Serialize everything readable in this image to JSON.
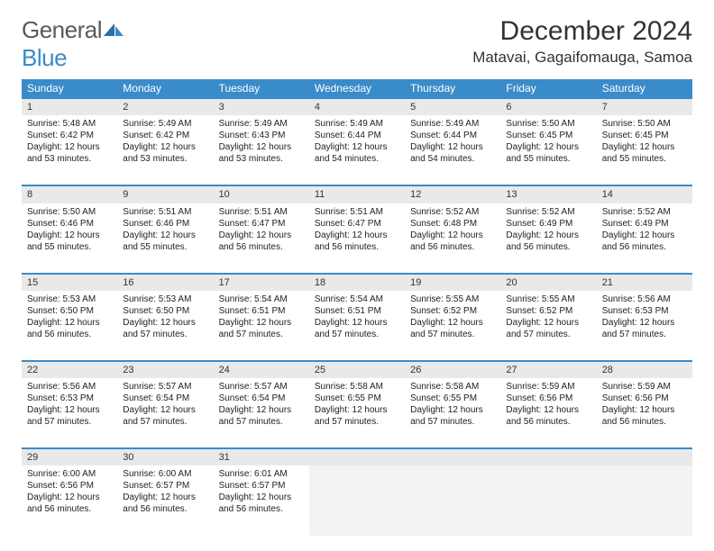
{
  "brand": {
    "word1": "General",
    "word2": "Blue"
  },
  "title": "December 2024",
  "location": "Matavai, Gagaifomauga, Samoa",
  "colors": {
    "accent": "#3a8bc9",
    "daynum_bg": "#e9e9e9",
    "empty_bg": "#f3f3f3",
    "text": "#222222"
  },
  "days_of_week": [
    "Sunday",
    "Monday",
    "Tuesday",
    "Wednesday",
    "Thursday",
    "Friday",
    "Saturday"
  ],
  "weeks": [
    [
      {
        "n": "1",
        "sr": "Sunrise: 5:48 AM",
        "ss": "Sunset: 6:42 PM",
        "d1": "Daylight: 12 hours",
        "d2": "and 53 minutes."
      },
      {
        "n": "2",
        "sr": "Sunrise: 5:49 AM",
        "ss": "Sunset: 6:42 PM",
        "d1": "Daylight: 12 hours",
        "d2": "and 53 minutes."
      },
      {
        "n": "3",
        "sr": "Sunrise: 5:49 AM",
        "ss": "Sunset: 6:43 PM",
        "d1": "Daylight: 12 hours",
        "d2": "and 53 minutes."
      },
      {
        "n": "4",
        "sr": "Sunrise: 5:49 AM",
        "ss": "Sunset: 6:44 PM",
        "d1": "Daylight: 12 hours",
        "d2": "and 54 minutes."
      },
      {
        "n": "5",
        "sr": "Sunrise: 5:49 AM",
        "ss": "Sunset: 6:44 PM",
        "d1": "Daylight: 12 hours",
        "d2": "and 54 minutes."
      },
      {
        "n": "6",
        "sr": "Sunrise: 5:50 AM",
        "ss": "Sunset: 6:45 PM",
        "d1": "Daylight: 12 hours",
        "d2": "and 55 minutes."
      },
      {
        "n": "7",
        "sr": "Sunrise: 5:50 AM",
        "ss": "Sunset: 6:45 PM",
        "d1": "Daylight: 12 hours",
        "d2": "and 55 minutes."
      }
    ],
    [
      {
        "n": "8",
        "sr": "Sunrise: 5:50 AM",
        "ss": "Sunset: 6:46 PM",
        "d1": "Daylight: 12 hours",
        "d2": "and 55 minutes."
      },
      {
        "n": "9",
        "sr": "Sunrise: 5:51 AM",
        "ss": "Sunset: 6:46 PM",
        "d1": "Daylight: 12 hours",
        "d2": "and 55 minutes."
      },
      {
        "n": "10",
        "sr": "Sunrise: 5:51 AM",
        "ss": "Sunset: 6:47 PM",
        "d1": "Daylight: 12 hours",
        "d2": "and 56 minutes."
      },
      {
        "n": "11",
        "sr": "Sunrise: 5:51 AM",
        "ss": "Sunset: 6:47 PM",
        "d1": "Daylight: 12 hours",
        "d2": "and 56 minutes."
      },
      {
        "n": "12",
        "sr": "Sunrise: 5:52 AM",
        "ss": "Sunset: 6:48 PM",
        "d1": "Daylight: 12 hours",
        "d2": "and 56 minutes."
      },
      {
        "n": "13",
        "sr": "Sunrise: 5:52 AM",
        "ss": "Sunset: 6:49 PM",
        "d1": "Daylight: 12 hours",
        "d2": "and 56 minutes."
      },
      {
        "n": "14",
        "sr": "Sunrise: 5:52 AM",
        "ss": "Sunset: 6:49 PM",
        "d1": "Daylight: 12 hours",
        "d2": "and 56 minutes."
      }
    ],
    [
      {
        "n": "15",
        "sr": "Sunrise: 5:53 AM",
        "ss": "Sunset: 6:50 PM",
        "d1": "Daylight: 12 hours",
        "d2": "and 56 minutes."
      },
      {
        "n": "16",
        "sr": "Sunrise: 5:53 AM",
        "ss": "Sunset: 6:50 PM",
        "d1": "Daylight: 12 hours",
        "d2": "and 57 minutes."
      },
      {
        "n": "17",
        "sr": "Sunrise: 5:54 AM",
        "ss": "Sunset: 6:51 PM",
        "d1": "Daylight: 12 hours",
        "d2": "and 57 minutes."
      },
      {
        "n": "18",
        "sr": "Sunrise: 5:54 AM",
        "ss": "Sunset: 6:51 PM",
        "d1": "Daylight: 12 hours",
        "d2": "and 57 minutes."
      },
      {
        "n": "19",
        "sr": "Sunrise: 5:55 AM",
        "ss": "Sunset: 6:52 PM",
        "d1": "Daylight: 12 hours",
        "d2": "and 57 minutes."
      },
      {
        "n": "20",
        "sr": "Sunrise: 5:55 AM",
        "ss": "Sunset: 6:52 PM",
        "d1": "Daylight: 12 hours",
        "d2": "and 57 minutes."
      },
      {
        "n": "21",
        "sr": "Sunrise: 5:56 AM",
        "ss": "Sunset: 6:53 PM",
        "d1": "Daylight: 12 hours",
        "d2": "and 57 minutes."
      }
    ],
    [
      {
        "n": "22",
        "sr": "Sunrise: 5:56 AM",
        "ss": "Sunset: 6:53 PM",
        "d1": "Daylight: 12 hours",
        "d2": "and 57 minutes."
      },
      {
        "n": "23",
        "sr": "Sunrise: 5:57 AM",
        "ss": "Sunset: 6:54 PM",
        "d1": "Daylight: 12 hours",
        "d2": "and 57 minutes."
      },
      {
        "n": "24",
        "sr": "Sunrise: 5:57 AM",
        "ss": "Sunset: 6:54 PM",
        "d1": "Daylight: 12 hours",
        "d2": "and 57 minutes."
      },
      {
        "n": "25",
        "sr": "Sunrise: 5:58 AM",
        "ss": "Sunset: 6:55 PM",
        "d1": "Daylight: 12 hours",
        "d2": "and 57 minutes."
      },
      {
        "n": "26",
        "sr": "Sunrise: 5:58 AM",
        "ss": "Sunset: 6:55 PM",
        "d1": "Daylight: 12 hours",
        "d2": "and 57 minutes."
      },
      {
        "n": "27",
        "sr": "Sunrise: 5:59 AM",
        "ss": "Sunset: 6:56 PM",
        "d1": "Daylight: 12 hours",
        "d2": "and 56 minutes."
      },
      {
        "n": "28",
        "sr": "Sunrise: 5:59 AM",
        "ss": "Sunset: 6:56 PM",
        "d1": "Daylight: 12 hours",
        "d2": "and 56 minutes."
      }
    ],
    [
      {
        "n": "29",
        "sr": "Sunrise: 6:00 AM",
        "ss": "Sunset: 6:56 PM",
        "d1": "Daylight: 12 hours",
        "d2": "and 56 minutes."
      },
      {
        "n": "30",
        "sr": "Sunrise: 6:00 AM",
        "ss": "Sunset: 6:57 PM",
        "d1": "Daylight: 12 hours",
        "d2": "and 56 minutes."
      },
      {
        "n": "31",
        "sr": "Sunrise: 6:01 AM",
        "ss": "Sunset: 6:57 PM",
        "d1": "Daylight: 12 hours",
        "d2": "and 56 minutes."
      },
      null,
      null,
      null,
      null
    ]
  ]
}
